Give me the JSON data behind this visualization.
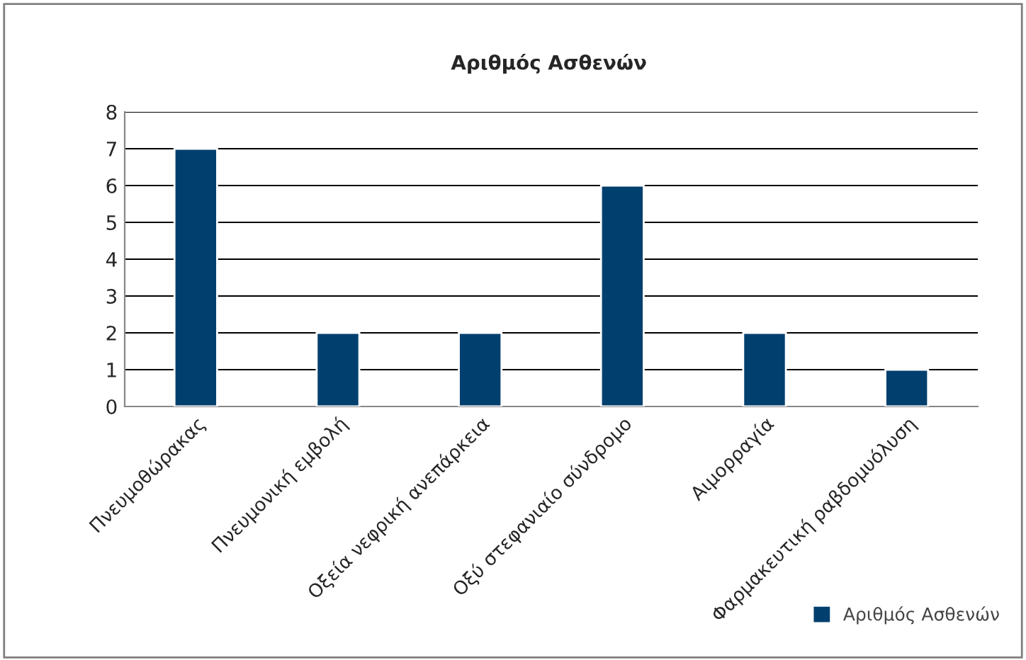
{
  "chart_data": {
    "type": "bar",
    "title": "Αριθμός Ασθενών",
    "categories": [
      "Πνευμοθώρακας",
      "Πνευμονική εμβολή",
      "Οξεία νεφρική ανεπάρκεια",
      "Οξύ στεφανιαίο σύνδρομο",
      "Αιμορραγία",
      "Φαρμακευτική ραβδομυόλυση"
    ],
    "series": [
      {
        "name": "Αριθμός Ασθενών",
        "color": "#003f6e",
        "values": [
          7,
          2,
          2,
          6,
          2,
          1
        ]
      }
    ],
    "ylim": [
      0,
      8
    ],
    "yticks": [
      0,
      1,
      2,
      3,
      4,
      5,
      6,
      7,
      8
    ],
    "grid": "y",
    "legend": "bottom right"
  }
}
